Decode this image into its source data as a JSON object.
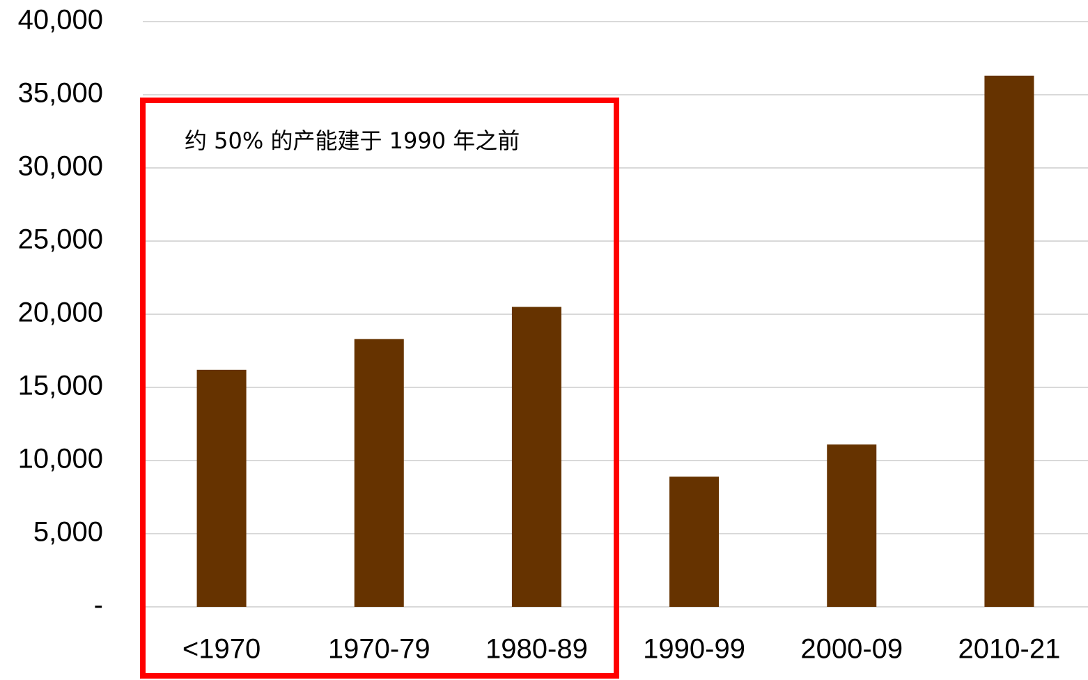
{
  "chart_data": {
    "type": "bar",
    "annotation": "约 50% 的产能建于 1990 年之前",
    "categories": [
      "<1970",
      "1970-79",
      "1980-89",
      "1990-99",
      "2000-09",
      "2010-21"
    ],
    "values": [
      16200,
      18300,
      20500,
      8900,
      11100,
      36300
    ],
    "color": "#663300",
    "ylim": [
      0,
      40000
    ],
    "yticks": [
      {
        "value": 0,
        "label": "-"
      },
      {
        "value": 5000,
        "label": "5,000"
      },
      {
        "value": 10000,
        "label": "10,000"
      },
      {
        "value": 15000,
        "label": "15,000"
      },
      {
        "value": 20000,
        "label": "20,000"
      },
      {
        "value": 25000,
        "label": "25,000"
      },
      {
        "value": 30000,
        "label": "30,000"
      },
      {
        "value": 35000,
        "label": "35,000"
      },
      {
        "value": 40000,
        "label": "40,000"
      }
    ],
    "grid": true
  }
}
